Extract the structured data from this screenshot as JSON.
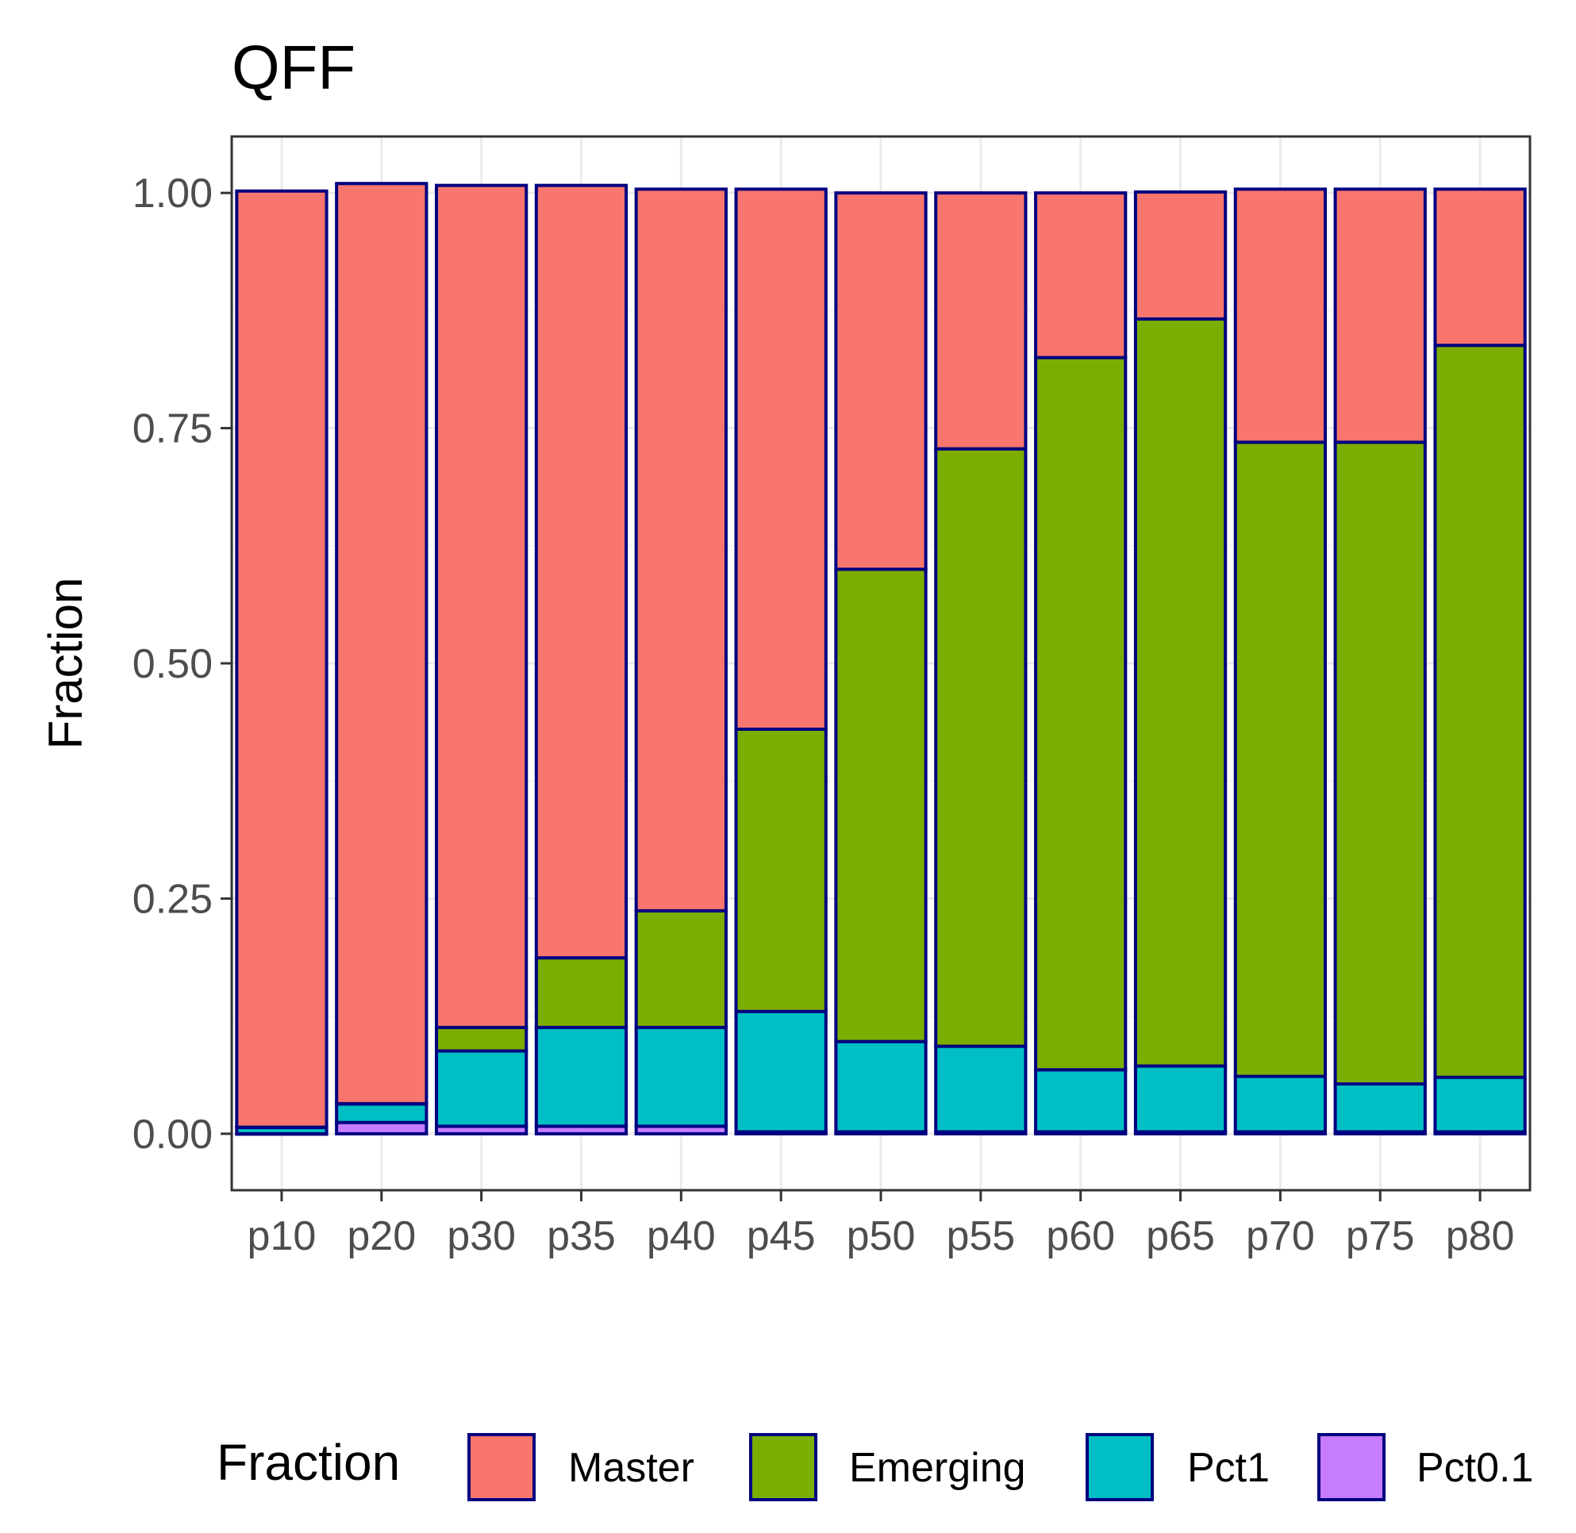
{
  "chart_data": {
    "type": "bar",
    "stacked": true,
    "title": "QFF",
    "xlabel": "",
    "ylabel": "Fraction",
    "ylim": [
      -0.06,
      1.06
    ],
    "yticks": [
      0.0,
      0.25,
      0.5,
      0.75,
      1.0
    ],
    "ytick_labels": [
      "0.00",
      "0.25",
      "0.50",
      "0.75",
      "1.00"
    ],
    "categories": [
      "p10",
      "p20",
      "p30",
      "p35",
      "p40",
      "p45",
      "p50",
      "p55",
      "p60",
      "p65",
      "p70",
      "p75",
      "p80"
    ],
    "legend": {
      "title": "Fraction",
      "position": "bottom",
      "entries": [
        "Master",
        "Emerging",
        "Pct1",
        "Pct0.1"
      ]
    },
    "bar_outline_color": "#000080",
    "series": [
      {
        "name": "Pct0.1",
        "color": "#C77CFF",
        "values": [
          0.0,
          0.012,
          0.008,
          0.008,
          0.008,
          0.002,
          0.002,
          0.002,
          0.002,
          0.002,
          0.002,
          0.002,
          0.002
        ]
      },
      {
        "name": "Pct1",
        "color": "#00BFC4",
        "values": [
          0.007,
          0.02,
          0.08,
          0.105,
          0.105,
          0.128,
          0.096,
          0.091,
          0.066,
          0.07,
          0.059,
          0.051,
          0.058
        ]
      },
      {
        "name": "Emerging",
        "color": "#7CAE00",
        "values": [
          0.0,
          0.0,
          0.025,
          0.074,
          0.124,
          0.3,
          0.502,
          0.635,
          0.757,
          0.794,
          0.674,
          0.682,
          0.778
        ]
      },
      {
        "name": "Master",
        "color": "#F8766D",
        "values": [
          0.995,
          0.978,
          0.895,
          0.821,
          0.767,
          0.574,
          0.4,
          0.272,
          0.175,
          0.135,
          0.269,
          0.269,
          0.166
        ]
      }
    ]
  }
}
